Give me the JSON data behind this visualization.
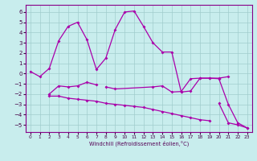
{
  "xlabel": "Windchill (Refroidissement éolien,°C)",
  "xlim": [
    -0.5,
    23.5
  ],
  "ylim": [
    -5.7,
    6.7
  ],
  "yticks": [
    -5,
    -4,
    -3,
    -2,
    -1,
    0,
    1,
    2,
    3,
    4,
    5,
    6
  ],
  "xticks": [
    0,
    1,
    2,
    3,
    4,
    5,
    6,
    7,
    8,
    9,
    10,
    11,
    12,
    13,
    14,
    15,
    16,
    17,
    18,
    19,
    20,
    21,
    22,
    23
  ],
  "background_color": "#c8eded",
  "grid_color": "#a0cccc",
  "line_color": "#aa00aa",
  "curve1_x": [
    0,
    1,
    2,
    3,
    4,
    5,
    6,
    7,
    8,
    9,
    10,
    11,
    12,
    13,
    14,
    15,
    16,
    17,
    18,
    19,
    20,
    21,
    22,
    23
  ],
  "curve1_y": [
    0.2,
    -0.3,
    0.5,
    3.2,
    4.6,
    5.0,
    3.3,
    0.4,
    1.5,
    4.3,
    6.0,
    6.1,
    4.6,
    3.0,
    2.1,
    2.1,
    -1.8,
    -1.7,
    -0.45,
    -0.45,
    -0.5,
    -3.0,
    -4.8,
    -5.3
  ],
  "curve2_seg1_x": [
    2,
    3,
    4,
    5,
    6,
    7
  ],
  "curve2_seg1_y": [
    -2.0,
    -1.2,
    -1.3,
    -1.2,
    -0.85,
    -1.1
  ],
  "curve2_seg2_x": [
    8,
    9,
    13,
    14,
    15,
    16,
    17,
    18,
    19,
    20,
    21
  ],
  "curve2_seg2_y": [
    -1.3,
    -1.5,
    -1.3,
    -1.2,
    -1.8,
    -1.75,
    -0.5,
    -0.45,
    -0.45,
    -0.45,
    -0.3
  ],
  "curve3_x": [
    2,
    3,
    4,
    5,
    6,
    7,
    8,
    9,
    10,
    11,
    12,
    13,
    14,
    15,
    16,
    17,
    18,
    19,
    20,
    21,
    22,
    23
  ],
  "curve3_y": [
    -2.2,
    -2.2,
    -2.4,
    -2.5,
    -2.6,
    -2.7,
    -2.9,
    -3.0,
    -3.1,
    -3.2,
    -3.3,
    -3.5,
    -3.7,
    -3.9,
    -4.1,
    -4.3,
    -4.5,
    -4.6,
    -2.9,
    -4.8,
    -5.0,
    -5.3
  ]
}
